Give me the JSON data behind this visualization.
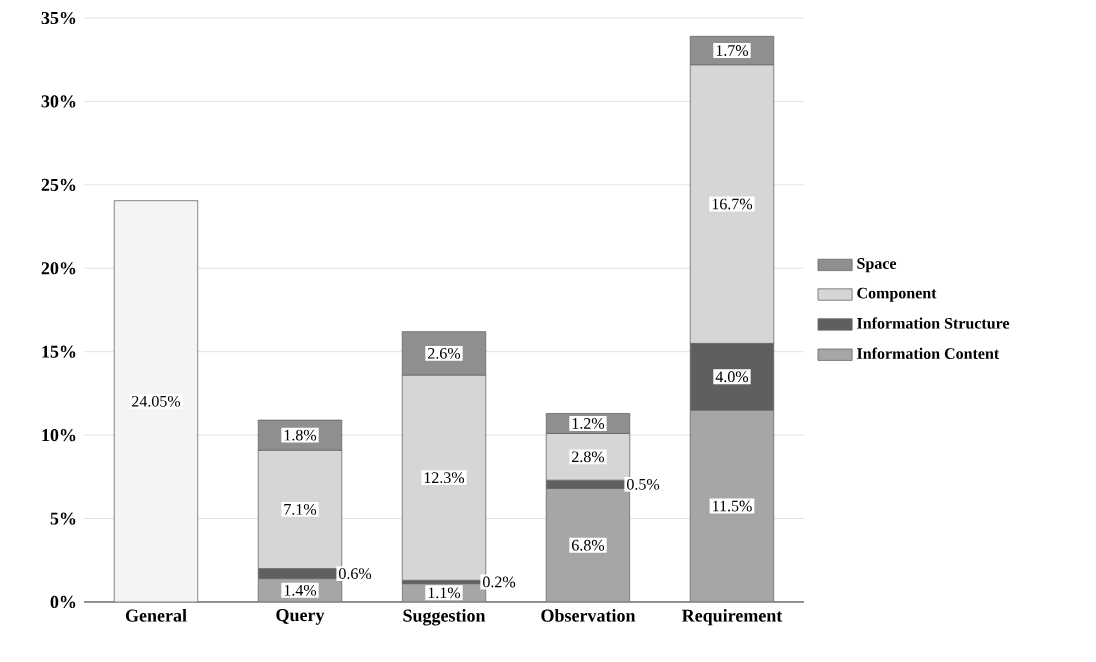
{
  "chart_data": {
    "type": "bar",
    "stacked": true,
    "categories": [
      "General",
      "Query",
      "Suggestion",
      "Observation",
      "Requirement"
    ],
    "series": [
      {
        "color": "#f4f4f4",
        "values": [
          24.05,
          null,
          null,
          null,
          null
        ],
        "value_labels": [
          "24.05%",
          null,
          null,
          null,
          null
        ]
      },
      {
        "name": "Information Content",
        "color": "#a6a6a6",
        "values": [
          null,
          1.4,
          1.1,
          6.8,
          11.5
        ],
        "value_labels": [
          null,
          "1.4%",
          "1.1%",
          "6.8%",
          "11.5%"
        ]
      },
      {
        "name": "Information Structure",
        "color": "#5f5f5f",
        "values": [
          null,
          0.6,
          0.2,
          0.5,
          4.0
        ],
        "value_labels": [
          null,
          "0.6%",
          "0.2%",
          "0.5%",
          "4.0%"
        ]
      },
      {
        "name": "Component",
        "color": "#d6d6d6",
        "values": [
          null,
          7.1,
          12.3,
          2.8,
          16.7
        ],
        "value_labels": [
          null,
          "7.1%",
          "12.3%",
          "2.8%",
          "16.7%"
        ]
      },
      {
        "name": "Space",
        "color": "#8f8f8f",
        "values": [
          null,
          1.8,
          2.6,
          1.2,
          1.7
        ],
        "value_labels": [
          null,
          "1.8%",
          "2.6%",
          "1.2%",
          "1.7%"
        ]
      }
    ],
    "ylim": [
      0,
      35
    ],
    "yticks": [
      {
        "value": 0,
        "label": "0%"
      },
      {
        "value": 5,
        "label": "5%"
      },
      {
        "value": 10,
        "label": "10%"
      },
      {
        "value": 15,
        "label": "15%"
      },
      {
        "value": 20,
        "label": "20%"
      },
      {
        "value": 25,
        "label": "25%"
      },
      {
        "value": 30,
        "label": "30%"
      },
      {
        "value": 35,
        "label": "35%"
      }
    ],
    "grid": "y",
    "legend": "right"
  }
}
